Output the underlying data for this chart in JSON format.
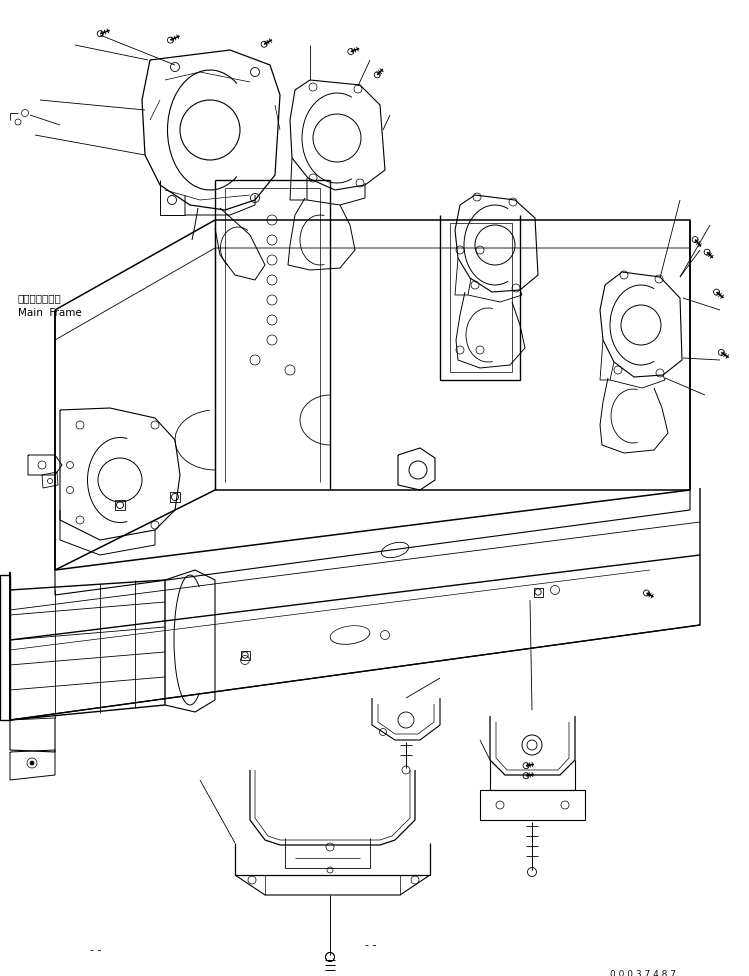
{
  "background_color": "#ffffff",
  "line_color": "#000000",
  "label_main_jp": "メインフレーム",
  "label_main_en": "Main  Frame",
  "watermark": "0 0 0 3 7 4 8 7",
  "fig_width": 7.49,
  "fig_height": 9.76,
  "dpi": 100
}
